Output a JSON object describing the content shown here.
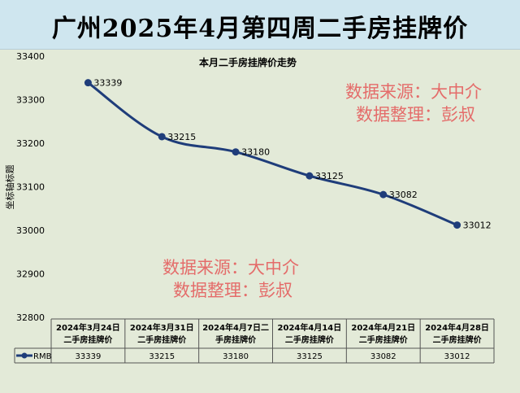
{
  "page_title": "广州2025年4月第四周二手房挂牌价",
  "watermark": {
    "line1": "数据来源：大中介",
    "line2": "数据整理：彭叔"
  },
  "chart_data": {
    "type": "line",
    "title": "本月二手房挂牌价走势",
    "ylabel": "坐标轴标题",
    "xlabel": "",
    "ylim": [
      32800,
      33400
    ],
    "yticks": [
      32800,
      32900,
      33000,
      33100,
      33200,
      33300,
      33400
    ],
    "grid": false,
    "categories": [
      [
        "2024年3月24日",
        "二手房挂牌价"
      ],
      [
        "2024年3月31日",
        "二手房挂牌价"
      ],
      [
        "2024年4月7日二",
        "手房挂牌价"
      ],
      [
        "2024年4月14日",
        "二手房挂牌价"
      ],
      [
        "2024年4月21日",
        "二手房挂牌价"
      ],
      [
        "2024年4月28日",
        "二手房挂牌价"
      ]
    ],
    "series": [
      {
        "name": "RMB",
        "color": "#1f3d7a",
        "values": [
          33339,
          33215,
          33180,
          33125,
          33082,
          33012
        ]
      }
    ],
    "data_labels": [
      "33339",
      "33215",
      "33180",
      "33125",
      "33082",
      "33012"
    ],
    "data_table": true
  }
}
